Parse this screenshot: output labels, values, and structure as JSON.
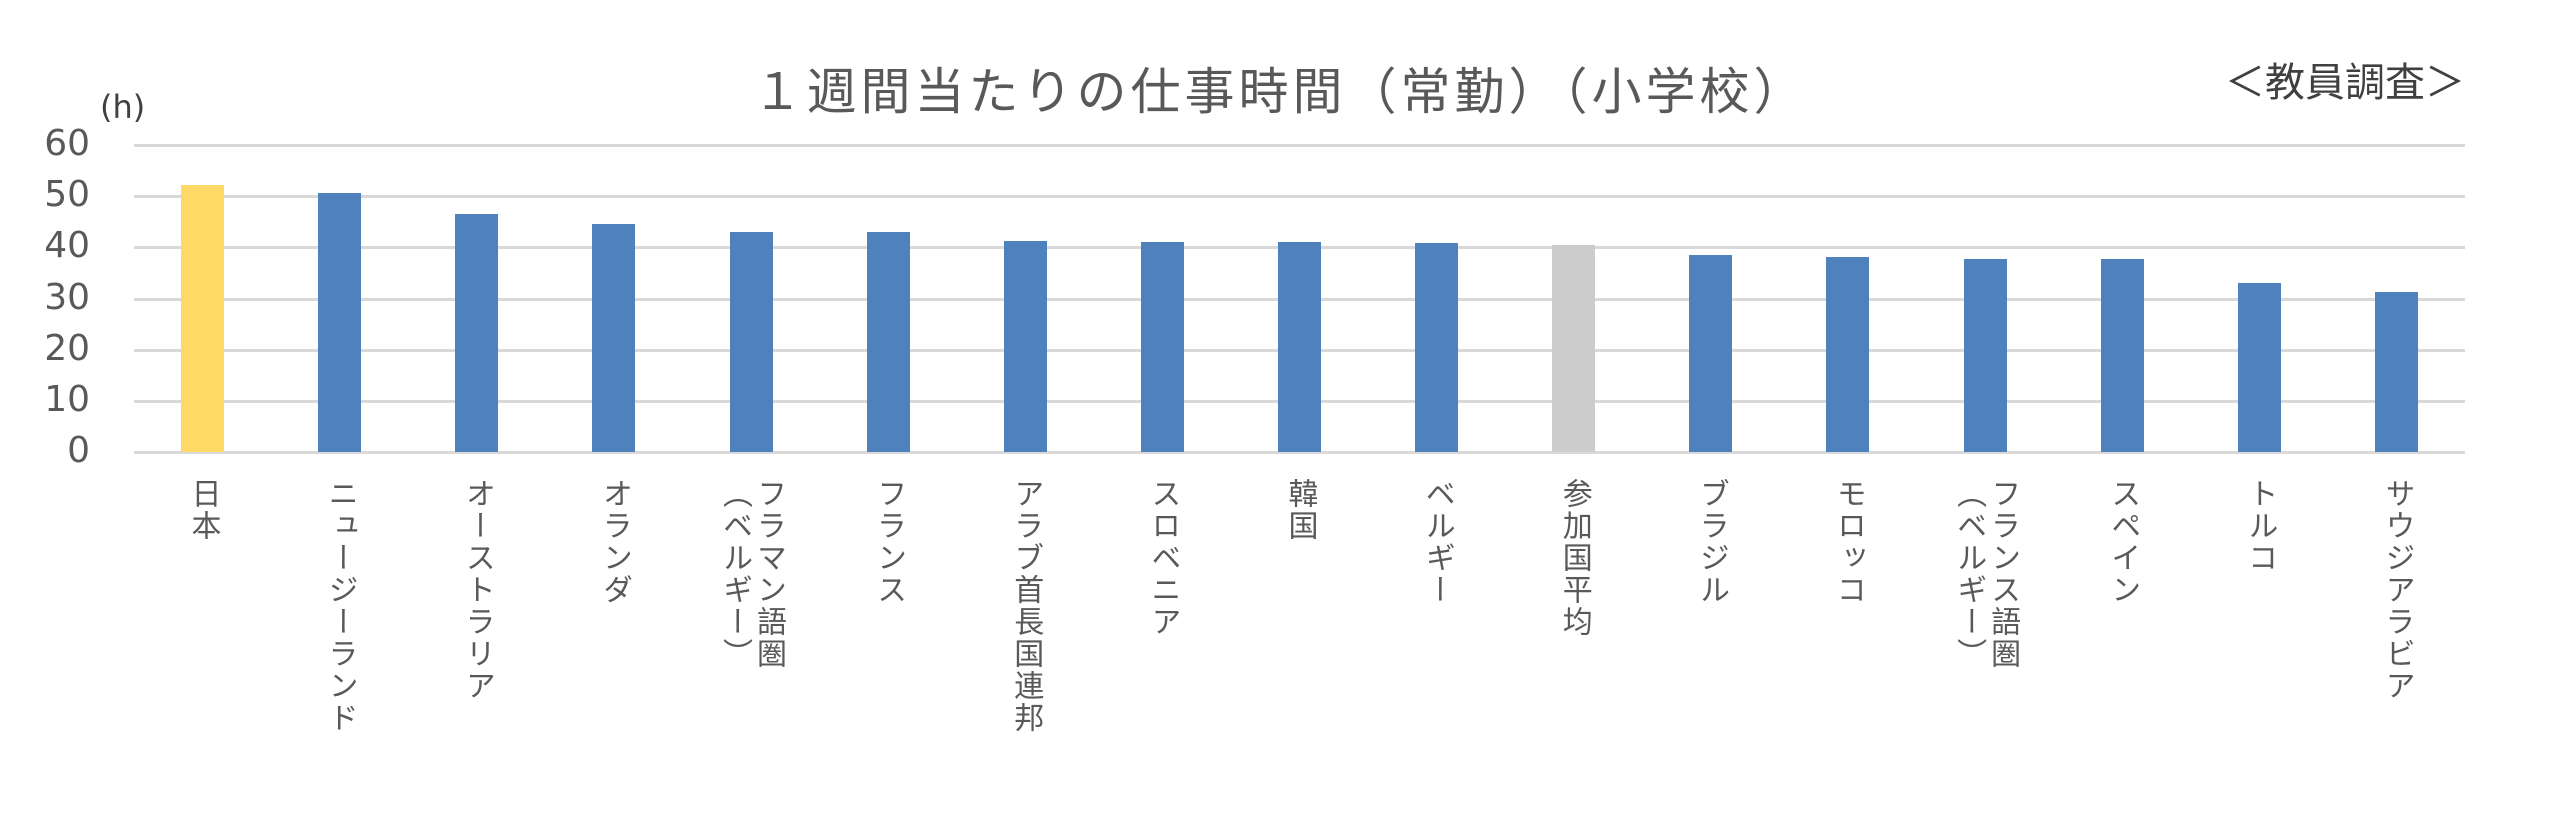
{
  "chart_data": {
    "type": "bar",
    "title": "１週間当たりの仕事時間（常勤）（小学校）",
    "subtitle": "＜教員調査＞",
    "ylabel": "(h)",
    "xlabel": "",
    "ylim": [
      0,
      60
    ],
    "yticks": [
      0,
      10,
      20,
      30,
      40,
      50,
      60
    ],
    "grid": true,
    "legend": "none",
    "categories": [
      "日本",
      "ニュージーランド",
      "オーストラリア",
      "オランダ",
      "フラマン語圏\n（ベルギー）",
      "フランス",
      "アラブ首長国連邦",
      "スロベニア",
      "韓国",
      "ベルギー",
      "参加国平均",
      "ブラジル",
      "モロッコ",
      "フランス語圏\n（ベルギー）",
      "スペイン",
      "トルコ",
      "サウジアラビア"
    ],
    "values": [
      52.1,
      50.7,
      46.5,
      44.6,
      42.9,
      42.9,
      41.2,
      41.1,
      41.1,
      40.8,
      40.4,
      38.5,
      38.1,
      37.7,
      37.7,
      33.1,
      31.2
    ],
    "colors": {
      "default": "#4f81bd",
      "日本": "#ffd966",
      "参加国平均": "#cccccc"
    }
  }
}
